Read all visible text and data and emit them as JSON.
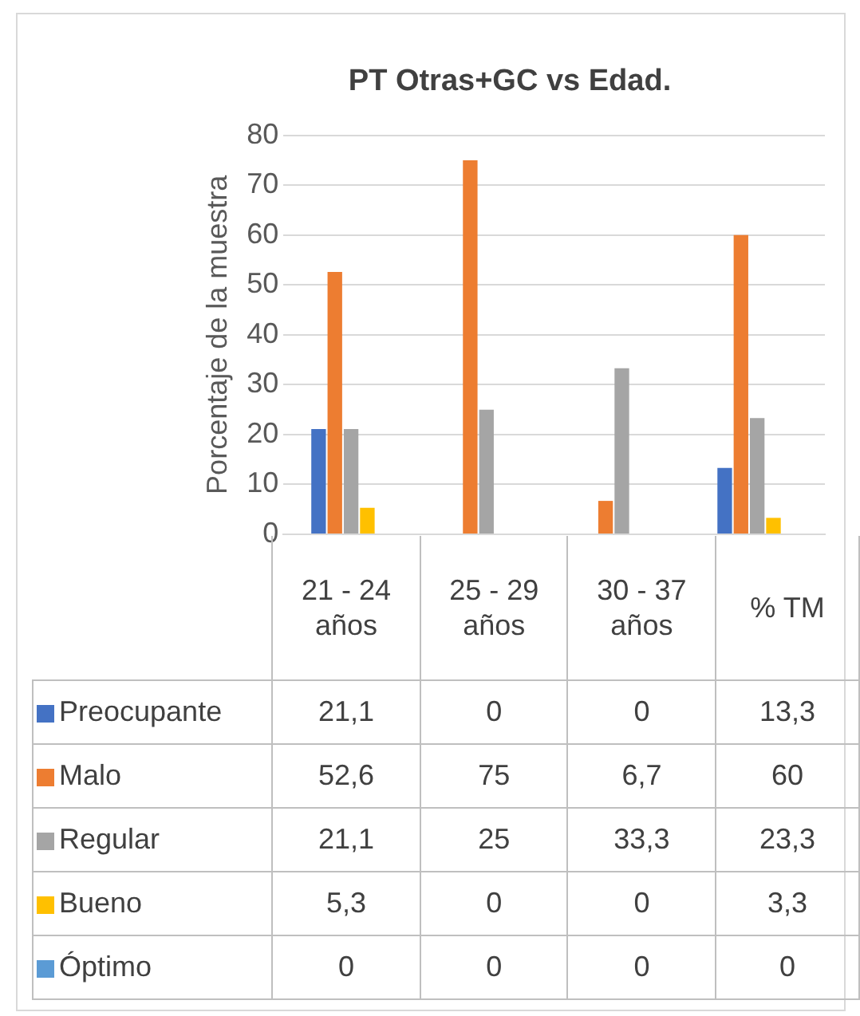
{
  "chart_data": {
    "type": "bar",
    "title": "PT Otras+GC vs Edad.",
    "ylabel": "Porcentaje de la muestra",
    "categories": [
      "21 - 24 años",
      "25 - 29 años",
      "30 - 37 años",
      "% TM"
    ],
    "series": [
      {
        "name": "Preocupante",
        "color": "#4472c4",
        "values": [
          21.1,
          0,
          0,
          13.3
        ],
        "value_labels": [
          "21,1",
          "0",
          "0",
          "13,3"
        ]
      },
      {
        "name": "Malo",
        "color": "#ed7d31",
        "values": [
          52.6,
          75,
          6.7,
          60
        ],
        "value_labels": [
          "52,6",
          "75",
          "6,7",
          "60"
        ]
      },
      {
        "name": "Regular",
        "color": "#a5a5a5",
        "values": [
          21.1,
          25,
          33.3,
          23.3
        ],
        "value_labels": [
          "21,1",
          "25",
          "33,3",
          "23,3"
        ]
      },
      {
        "name": "Bueno",
        "color": "#ffc000",
        "values": [
          5.3,
          0,
          0,
          3.3
        ],
        "value_labels": [
          "5,3",
          "0",
          "0",
          "3,3"
        ]
      },
      {
        "name": "Óptimo",
        "color": "#5b9bd5",
        "values": [
          0,
          0,
          0,
          0
        ],
        "value_labels": [
          "0",
          "0",
          "0",
          "0"
        ]
      }
    ],
    "ylim": [
      0,
      80
    ],
    "yticks": [
      0,
      10,
      20,
      30,
      40,
      50,
      60,
      70,
      80
    ],
    "grid": "y",
    "legend": "bottom"
  }
}
